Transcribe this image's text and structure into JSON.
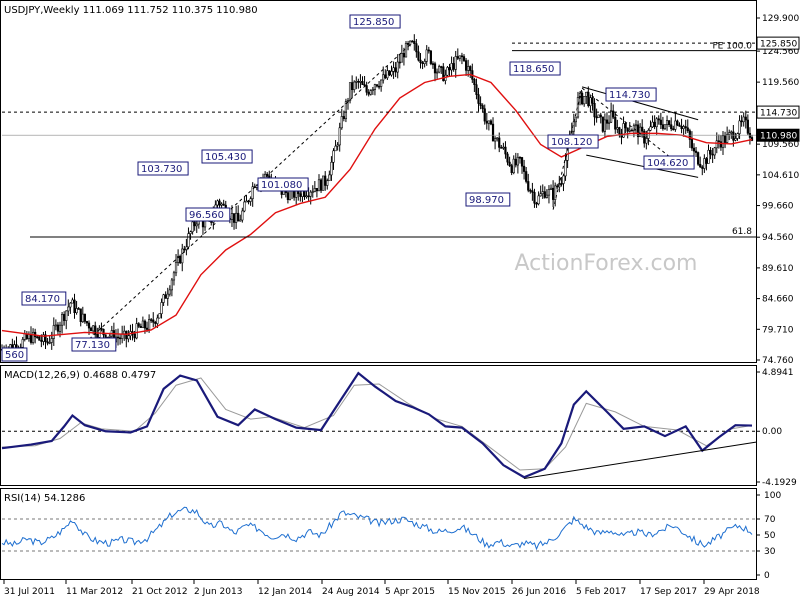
{
  "chart_data": {
    "type": "candlestick",
    "header": {
      "symbol": "USDJPY,Weekly",
      "ohlc": "111.069 111.752 110.375 110.980"
    },
    "watermark": "ActionForex.com",
    "x_labels": [
      "31 Jul 2011",
      "11 Mar 2012",
      "21 Oct 2012",
      "2 Jun 2013",
      "12 Jan 2014",
      "24 Aug 2014",
      "5 Apr 2015",
      "15 Nov 2015",
      "26 Jun 2016",
      "5 Feb 2017",
      "17 Sep 2017",
      "29 Apr 2018"
    ],
    "price_panel": {
      "ylim": [
        74.76,
        129.9
      ],
      "y_ticks": [
        "129.900",
        "124.560",
        "119.560",
        "114.730",
        "109.560",
        "104.610",
        "99.660",
        "94.560",
        "89.610",
        "84.660",
        "79.710",
        "74.760"
      ],
      "current_price": "110.980",
      "key_levels": [
        {
          "label": "125.850",
          "value": 125.85
        },
        {
          "label": "114.730",
          "value": 114.73
        },
        {
          "label": "61.8",
          "value": 94.6
        },
        {
          "label": "FE 100.0",
          "value": 124.8
        }
      ],
      "annotations": [
        "125.850",
        "118.650",
        "114.730",
        "108.120",
        "104.620",
        "98.970",
        "105.430",
        "103.730",
        "101.080",
        "96.560",
        "84.170",
        "77.130",
        "560"
      ],
      "close_series": [
        {
          "t": 0,
          "v": 76.5
        },
        {
          "t": 8,
          "v": 77.3
        },
        {
          "t": 14,
          "v": 78.5
        },
        {
          "t": 22,
          "v": 77.6
        },
        {
          "t": 28,
          "v": 81.0
        },
        {
          "t": 33,
          "v": 84.0
        },
        {
          "t": 40,
          "v": 81.0
        },
        {
          "t": 46,
          "v": 79.5
        },
        {
          "t": 54,
          "v": 78.5
        },
        {
          "t": 60,
          "v": 78.3
        },
        {
          "t": 66,
          "v": 79.8
        },
        {
          "t": 72,
          "v": 80.5
        },
        {
          "t": 76,
          "v": 82.6
        },
        {
          "t": 82,
          "v": 88.0
        },
        {
          "t": 88,
          "v": 93.0
        },
        {
          "t": 94,
          "v": 97.5
        },
        {
          "t": 100,
          "v": 96.5
        },
        {
          "t": 104,
          "v": 100.5
        },
        {
          "t": 108,
          "v": 99.0
        },
        {
          "t": 114,
          "v": 97.0
        },
        {
          "t": 118,
          "v": 100.0
        },
        {
          "t": 122,
          "v": 103.5
        },
        {
          "t": 128,
          "v": 104.5
        },
        {
          "t": 134,
          "v": 102.0
        },
        {
          "t": 140,
          "v": 101.5
        },
        {
          "t": 146,
          "v": 102.0
        },
        {
          "t": 150,
          "v": 102.5
        },
        {
          "t": 156,
          "v": 103.5
        },
        {
          "t": 160,
          "v": 107.5
        },
        {
          "t": 164,
          "v": 113.0
        },
        {
          "t": 168,
          "v": 118.5
        },
        {
          "t": 172,
          "v": 119.5
        },
        {
          "t": 176,
          "v": 118.0
        },
        {
          "t": 180,
          "v": 119.5
        },
        {
          "t": 184,
          "v": 120.0
        },
        {
          "t": 190,
          "v": 121.5
        },
        {
          "t": 194,
          "v": 124.5
        },
        {
          "t": 198,
          "v": 125.5
        },
        {
          "t": 202,
          "v": 123.5
        },
        {
          "t": 206,
          "v": 124.0
        },
        {
          "t": 210,
          "v": 121.5
        },
        {
          "t": 214,
          "v": 120.5
        },
        {
          "t": 218,
          "v": 122.5
        },
        {
          "t": 222,
          "v": 123.5
        },
        {
          "t": 226,
          "v": 121.0
        },
        {
          "t": 230,
          "v": 117.0
        },
        {
          "t": 234,
          "v": 113.0
        },
        {
          "t": 238,
          "v": 110.5
        },
        {
          "t": 242,
          "v": 108.5
        },
        {
          "t": 246,
          "v": 106.0
        },
        {
          "t": 250,
          "v": 106.5
        },
        {
          "t": 254,
          "v": 103.0
        },
        {
          "t": 258,
          "v": 100.5
        },
        {
          "t": 262,
          "v": 102.0
        },
        {
          "t": 266,
          "v": 101.5
        },
        {
          "t": 270,
          "v": 104.0
        },
        {
          "t": 274,
          "v": 110.0
        },
        {
          "t": 278,
          "v": 116.5
        },
        {
          "t": 282,
          "v": 117.5
        },
        {
          "t": 286,
          "v": 114.5
        },
        {
          "t": 290,
          "v": 112.5
        },
        {
          "t": 294,
          "v": 114.0
        },
        {
          "t": 298,
          "v": 111.5
        },
        {
          "t": 302,
          "v": 112.5
        },
        {
          "t": 306,
          "v": 112.0
        },
        {
          "t": 310,
          "v": 110.5
        },
        {
          "t": 314,
          "v": 112.5
        },
        {
          "t": 318,
          "v": 113.0
        },
        {
          "t": 322,
          "v": 112.5
        },
        {
          "t": 326,
          "v": 113.5
        },
        {
          "t": 330,
          "v": 112.0
        },
        {
          "t": 334,
          "v": 108.0
        },
        {
          "t": 338,
          "v": 106.5
        },
        {
          "t": 342,
          "v": 108.0
        },
        {
          "t": 346,
          "v": 110.0
        },
        {
          "t": 350,
          "v": 110.5
        },
        {
          "t": 354,
          "v": 111.5
        },
        {
          "t": 358,
          "v": 113.0
        },
        {
          "t": 362,
          "v": 111.0
        }
      ],
      "sma_series": [
        {
          "t": 0,
          "v": 79.5
        },
        {
          "t": 20,
          "v": 78.6
        },
        {
          "t": 40,
          "v": 79.2
        },
        {
          "t": 60,
          "v": 78.9
        },
        {
          "t": 72,
          "v": 79.6
        },
        {
          "t": 84,
          "v": 82.0
        },
        {
          "t": 96,
          "v": 88.5
        },
        {
          "t": 108,
          "v": 92.5
        },
        {
          "t": 120,
          "v": 95.0
        },
        {
          "t": 132,
          "v": 98.5
        },
        {
          "t": 144,
          "v": 100.0
        },
        {
          "t": 156,
          "v": 101.0
        },
        {
          "t": 168,
          "v": 105.5
        },
        {
          "t": 180,
          "v": 112.0
        },
        {
          "t": 192,
          "v": 117.0
        },
        {
          "t": 204,
          "v": 119.5
        },
        {
          "t": 216,
          "v": 120.5
        },
        {
          "t": 226,
          "v": 120.8
        },
        {
          "t": 236,
          "v": 119.5
        },
        {
          "t": 248,
          "v": 115.0
        },
        {
          "t": 260,
          "v": 109.5
        },
        {
          "t": 270,
          "v": 107.5
        },
        {
          "t": 280,
          "v": 109.0
        },
        {
          "t": 292,
          "v": 110.8
        },
        {
          "t": 304,
          "v": 111.3
        },
        {
          "t": 316,
          "v": 111.3
        },
        {
          "t": 328,
          "v": 111.0
        },
        {
          "t": 340,
          "v": 109.8
        },
        {
          "t": 352,
          "v": 109.6
        },
        {
          "t": 362,
          "v": 110.3
        }
      ]
    },
    "macd_panel": {
      "label": "MACD(12,26,9) 0.4688 0.4797",
      "ylim": [
        -4.1929,
        4.8941
      ],
      "y_ticks": [
        "4.8941",
        "0.00",
        "-4.1929"
      ],
      "macd_series": [
        {
          "t": 0,
          "v": -1.4
        },
        {
          "t": 14,
          "v": -1.1
        },
        {
          "t": 24,
          "v": -0.8
        },
        {
          "t": 30,
          "v": 0.4
        },
        {
          "t": 34,
          "v": 1.3
        },
        {
          "t": 40,
          "v": 0.5
        },
        {
          "t": 50,
          "v": 0.0
        },
        {
          "t": 62,
          "v": -0.1
        },
        {
          "t": 70,
          "v": 0.4
        },
        {
          "t": 78,
          "v": 3.5
        },
        {
          "t": 86,
          "v": 4.6
        },
        {
          "t": 94,
          "v": 4.2
        },
        {
          "t": 104,
          "v": 1.2
        },
        {
          "t": 114,
          "v": 0.5
        },
        {
          "t": 122,
          "v": 1.8
        },
        {
          "t": 132,
          "v": 1.0
        },
        {
          "t": 142,
          "v": 0.3
        },
        {
          "t": 154,
          "v": 0.1
        },
        {
          "t": 162,
          "v": 2.2
        },
        {
          "t": 172,
          "v": 4.8
        },
        {
          "t": 180,
          "v": 3.7
        },
        {
          "t": 190,
          "v": 2.5
        },
        {
          "t": 198,
          "v": 2.0
        },
        {
          "t": 206,
          "v": 1.4
        },
        {
          "t": 214,
          "v": 0.4
        },
        {
          "t": 222,
          "v": 0.3
        },
        {
          "t": 232,
          "v": -1.0
        },
        {
          "t": 242,
          "v": -2.8
        },
        {
          "t": 252,
          "v": -3.8
        },
        {
          "t": 262,
          "v": -3.1
        },
        {
          "t": 270,
          "v": -1.0
        },
        {
          "t": 276,
          "v": 2.2
        },
        {
          "t": 282,
          "v": 3.3
        },
        {
          "t": 292,
          "v": 1.6
        },
        {
          "t": 300,
          "v": 0.2
        },
        {
          "t": 310,
          "v": 0.4
        },
        {
          "t": 320,
          "v": -0.4
        },
        {
          "t": 330,
          "v": 0.4
        },
        {
          "t": 338,
          "v": -1.6
        },
        {
          "t": 346,
          "v": -0.5
        },
        {
          "t": 354,
          "v": 0.5
        },
        {
          "t": 362,
          "v": 0.47
        }
      ],
      "signal_series": [
        {
          "t": 0,
          "v": -1.3
        },
        {
          "t": 16,
          "v": -1.2
        },
        {
          "t": 28,
          "v": -0.6
        },
        {
          "t": 38,
          "v": 0.7
        },
        {
          "t": 48,
          "v": 0.2
        },
        {
          "t": 64,
          "v": 0.0
        },
        {
          "t": 74,
          "v": 1.5
        },
        {
          "t": 84,
          "v": 3.8
        },
        {
          "t": 96,
          "v": 4.4
        },
        {
          "t": 108,
          "v": 1.8
        },
        {
          "t": 120,
          "v": 1.0
        },
        {
          "t": 130,
          "v": 1.2
        },
        {
          "t": 146,
          "v": 0.3
        },
        {
          "t": 160,
          "v": 1.3
        },
        {
          "t": 170,
          "v": 3.8
        },
        {
          "t": 182,
          "v": 3.9
        },
        {
          "t": 196,
          "v": 2.3
        },
        {
          "t": 210,
          "v": 1.0
        },
        {
          "t": 222,
          "v": 0.4
        },
        {
          "t": 236,
          "v": -1.4
        },
        {
          "t": 250,
          "v": -3.2
        },
        {
          "t": 262,
          "v": -3.1
        },
        {
          "t": 272,
          "v": -1.3
        },
        {
          "t": 282,
          "v": 2.3
        },
        {
          "t": 296,
          "v": 1.6
        },
        {
          "t": 310,
          "v": 0.4
        },
        {
          "t": 326,
          "v": 0.1
        },
        {
          "t": 340,
          "v": -1.2
        },
        {
          "t": 352,
          "v": 0.2
        },
        {
          "t": 362,
          "v": 0.48
        }
      ]
    },
    "rsi_panel": {
      "label": "RSI(14) 54.1286",
      "ylim": [
        0,
        100
      ],
      "y_ticks": [
        "100",
        "70",
        "50",
        "30",
        "0"
      ],
      "rsi_series": [
        {
          "t": 0,
          "v": 41
        },
        {
          "t": 6,
          "v": 38
        },
        {
          "t": 12,
          "v": 45
        },
        {
          "t": 18,
          "v": 40
        },
        {
          "t": 24,
          "v": 46
        },
        {
          "t": 30,
          "v": 58
        },
        {
          "t": 34,
          "v": 70
        },
        {
          "t": 40,
          "v": 50
        },
        {
          "t": 46,
          "v": 42
        },
        {
          "t": 52,
          "v": 40
        },
        {
          "t": 58,
          "v": 44
        },
        {
          "t": 64,
          "v": 41
        },
        {
          "t": 70,
          "v": 46
        },
        {
          "t": 76,
          "v": 60
        },
        {
          "t": 82,
          "v": 76
        },
        {
          "t": 86,
          "v": 80
        },
        {
          "t": 90,
          "v": 82
        },
        {
          "t": 94,
          "v": 79
        },
        {
          "t": 100,
          "v": 60
        },
        {
          "t": 106,
          "v": 65
        },
        {
          "t": 112,
          "v": 52
        },
        {
          "t": 118,
          "v": 62
        },
        {
          "t": 124,
          "v": 58
        },
        {
          "t": 130,
          "v": 48
        },
        {
          "t": 136,
          "v": 52
        },
        {
          "t": 142,
          "v": 46
        },
        {
          "t": 148,
          "v": 54
        },
        {
          "t": 154,
          "v": 50
        },
        {
          "t": 160,
          "v": 66
        },
        {
          "t": 164,
          "v": 78
        },
        {
          "t": 170,
          "v": 74
        },
        {
          "t": 176,
          "v": 70
        },
        {
          "t": 182,
          "v": 64
        },
        {
          "t": 188,
          "v": 68
        },
        {
          "t": 194,
          "v": 70
        },
        {
          "t": 198,
          "v": 66
        },
        {
          "t": 204,
          "v": 60
        },
        {
          "t": 210,
          "v": 54
        },
        {
          "t": 216,
          "v": 56
        },
        {
          "t": 222,
          "v": 60
        },
        {
          "t": 228,
          "v": 50
        },
        {
          "t": 234,
          "v": 38
        },
        {
          "t": 240,
          "v": 42
        },
        {
          "t": 246,
          "v": 36
        },
        {
          "t": 252,
          "v": 40
        },
        {
          "t": 258,
          "v": 36
        },
        {
          "t": 264,
          "v": 42
        },
        {
          "t": 270,
          "v": 54
        },
        {
          "t": 276,
          "v": 70
        },
        {
          "t": 282,
          "v": 60
        },
        {
          "t": 288,
          "v": 52
        },
        {
          "t": 294,
          "v": 56
        },
        {
          "t": 300,
          "v": 48
        },
        {
          "t": 306,
          "v": 54
        },
        {
          "t": 312,
          "v": 50
        },
        {
          "t": 318,
          "v": 56
        },
        {
          "t": 324,
          "v": 62
        },
        {
          "t": 330,
          "v": 52
        },
        {
          "t": 336,
          "v": 40
        },
        {
          "t": 340,
          "v": 38
        },
        {
          "t": 346,
          "v": 48
        },
        {
          "t": 352,
          "v": 58
        },
        {
          "t": 356,
          "v": 62
        },
        {
          "t": 362,
          "v": 54
        }
      ]
    }
  }
}
